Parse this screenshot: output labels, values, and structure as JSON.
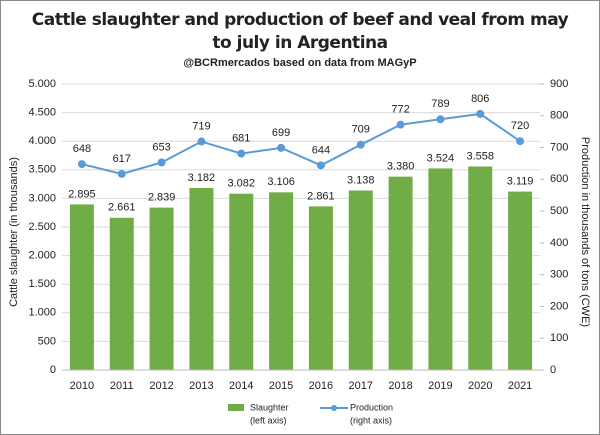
{
  "chart_data": {
    "type": "bar-line",
    "title": [
      "Cattle slaughter and production of beef and veal from may",
      "to july in Argentina"
    ],
    "subtitle": "@BCRmercados based on data from MAGyP",
    "y_label": "Cattle slaughter (in thousands)",
    "y2_label": "Production in thousands of tons (CWE)",
    "categories": [
      "2010",
      "2011",
      "2012",
      "2013",
      "2014",
      "2015",
      "2016",
      "2017",
      "2018",
      "2019",
      "2020",
      "2021"
    ],
    "series": [
      {
        "name": "Slaughter",
        "axis_note": "(left axis)",
        "kind": "bar",
        "color": "#70ad47",
        "values": [
          2895,
          2661,
          2839,
          3182,
          3082,
          3106,
          2861,
          3138,
          3380,
          3524,
          3558,
          3119
        ],
        "value_labels": [
          "2.895",
          "2.661",
          "2.839",
          "3.182",
          "3.082",
          "3.106",
          "2.861",
          "3.138",
          "3.380",
          "3.524",
          "3.558",
          "3.119"
        ]
      },
      {
        "name": "Production",
        "axis_note": "(right axis)",
        "kind": "line",
        "axis": "y2",
        "color": "#5b9bd5",
        "values": [
          648,
          617,
          653,
          719,
          681,
          699,
          644,
          709,
          772,
          789,
          806,
          720
        ]
      }
    ],
    "ylim": [
      0,
      5000
    ],
    "yticks": [
      0,
      500,
      {
        "value": 1000,
        "label": "1.000"
      },
      {
        "value": 1500,
        "label": "1.500"
      },
      {
        "value": 2000,
        "label": "2.000"
      },
      {
        "value": 2500,
        "label": "2.500"
      },
      {
        "value": 3000,
        "label": "3.000"
      },
      {
        "value": 3500,
        "label": "3.500"
      },
      {
        "value": 4000,
        "label": "4.000"
      },
      {
        "value": 4500,
        "label": "4.500"
      },
      {
        "value": 5000,
        "label": "5.000"
      }
    ],
    "y2lim": [
      0,
      900
    ],
    "y2ticks": [
      0,
      100,
      200,
      300,
      400,
      500,
      600,
      700,
      800,
      900
    ],
    "grid": true
  }
}
